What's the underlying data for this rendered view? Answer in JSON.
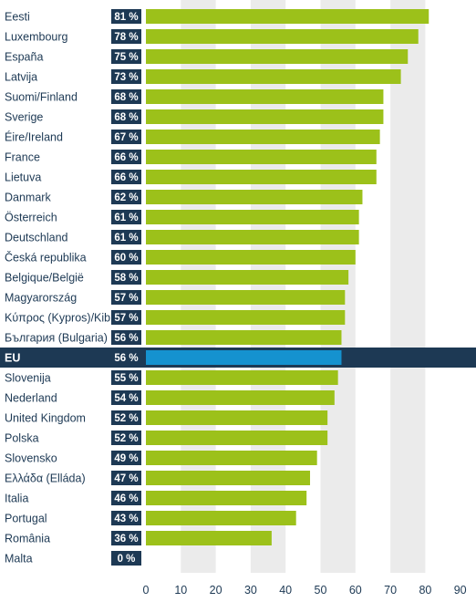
{
  "chart_data": {
    "type": "bar",
    "orientation": "horizontal",
    "title": "",
    "xlabel": "",
    "ylabel": "",
    "xlim": [
      0,
      90
    ],
    "ticks": [
      0,
      10,
      20,
      30,
      40,
      50,
      60,
      70,
      80,
      90
    ],
    "grid": "alternating column bands",
    "highlight_category": "EU",
    "categories": [
      "Eesti",
      "Luxembourg",
      "España",
      "Latvija",
      "Suomi/Finland",
      "Sverige",
      "Éire/Ireland",
      "France",
      "Lietuva",
      "Danmark",
      "Österreich",
      "Deutschland",
      "Česká republika",
      "Belgique/België",
      "Magyarország",
      "Κύπρος (Kypros)/Kibris",
      "България (Bulgaria)",
      "EU",
      "Slovenija",
      "Nederland",
      "United Kingdom",
      "Polska",
      "Slovensko",
      "Ελλάδα (Elláda)",
      "Italia",
      "Portugal",
      "România",
      "Malta"
    ],
    "values": [
      81,
      78,
      75,
      73,
      68,
      68,
      67,
      66,
      66,
      62,
      61,
      61,
      60,
      58,
      57,
      57,
      56,
      56,
      55,
      54,
      52,
      52,
      49,
      47,
      46,
      43,
      36,
      0
    ],
    "value_labels": [
      "81 %",
      "78 %",
      "75 %",
      "73 %",
      "68 %",
      "68 %",
      "67 %",
      "66 %",
      "66 %",
      "62 %",
      "61 %",
      "61 %",
      "60 %",
      "58 %",
      "57 %",
      "57 %",
      "56 %",
      "56 %",
      "55 %",
      "54 %",
      "52 %",
      "52 %",
      "49 %",
      "47 %",
      "46 %",
      "43 %",
      "36 %",
      "0 %"
    ],
    "colors": {
      "bar": "#9cc11a",
      "highlight_bar": "#1592cf",
      "label_box": "#1d3954",
      "highlight_row": "#1d3954",
      "band": "#ebebeb",
      "text": "#1d3954",
      "label_text": "#ffffff"
    }
  }
}
